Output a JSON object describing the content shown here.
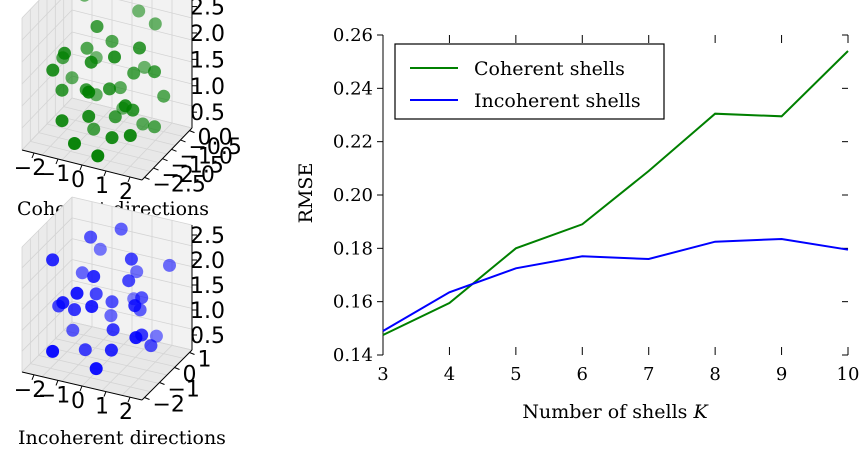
{
  "chart_data": [
    {
      "type": "scatter",
      "caption": "Coherent directions",
      "projection": "3d",
      "color": "#008000",
      "x_ticks": [
        "−2",
        "−1",
        "0",
        "1",
        "2"
      ],
      "y_ticks": [
        "−2.5",
        "−2.0",
        "−1.5",
        "−1.0",
        "−0.5",
        "0.0"
      ],
      "z_ticks": [
        "0.5",
        "1.0",
        "1.5",
        "2.0",
        "2.5"
      ],
      "points": [
        [
          -1.5,
          -0.4,
          2.7
        ],
        [
          -0.6,
          -0.2,
          2.9
        ],
        [
          0.6,
          -0.3,
          2.6
        ],
        [
          1.4,
          -0.5,
          2.5
        ],
        [
          -1.9,
          -1.1,
          1.5
        ],
        [
          -1.0,
          -1.0,
          1.8
        ],
        [
          0.0,
          -1.0,
          2.1
        ],
        [
          1.0,
          -1.2,
          1.6
        ],
        [
          1.9,
          -1.3,
          1.8
        ],
        [
          -1.6,
          -1.6,
          1.0
        ],
        [
          -0.7,
          -1.5,
          1.1
        ],
        [
          0.3,
          -1.6,
          1.3
        ],
        [
          1.3,
          -1.7,
          1.0
        ],
        [
          -1.2,
          -2.2,
          0.6
        ],
        [
          -0.2,
          -2.1,
          0.8
        ],
        [
          0.8,
          -2.2,
          0.5
        ],
        [
          1.6,
          -2.3,
          0.7
        ],
        [
          -0.5,
          -2.5,
          0.3
        ],
        [
          0.5,
          -2.6,
          0.2
        ],
        [
          -1.8,
          -0.7,
          0.9
        ],
        [
          -0.9,
          -0.6,
          0.6
        ],
        [
          0.1,
          -0.5,
          0.4
        ],
        [
          1.1,
          -0.8,
          0.3
        ],
        [
          2.0,
          -0.9,
          1.1
        ],
        [
          -1.3,
          -1.9,
          2.0
        ],
        [
          -0.3,
          -1.8,
          1.9
        ],
        [
          0.7,
          -1.9,
          2.2
        ],
        [
          1.7,
          -1.0,
          0.4
        ],
        [
          -0.6,
          -1.2,
          0.1
        ],
        [
          0.4,
          -1.4,
          0.6
        ],
        [
          -1.1,
          -0.3,
          1.3
        ],
        [
          0.9,
          -0.4,
          1.4
        ],
        [
          0.0,
          -2.4,
          1.5
        ],
        [
          1.5,
          -1.6,
          2.4
        ],
        [
          -1.7,
          -2.0,
          1.6
        ],
        [
          0.2,
          -0.8,
          1.0
        ],
        [
          1.2,
          -2.0,
          1.2
        ],
        [
          -0.4,
          -1.3,
          2.5
        ]
      ]
    },
    {
      "type": "scatter",
      "caption": "Incoherent directions",
      "projection": "3d",
      "color": "#0000ff",
      "x_ticks": [
        "−2",
        "−1",
        "0",
        "1",
        "2"
      ],
      "y_ticks": [
        "−2",
        "−1",
        "0",
        "1"
      ],
      "z_ticks": [
        "0.5",
        "1.0",
        "1.5",
        "2.0",
        "2.5"
      ],
      "points": [
        [
          -1.8,
          -1.0,
          2.4
        ],
        [
          -0.9,
          0.4,
          2.7
        ],
        [
          0.1,
          0.9,
          2.9
        ],
        [
          1.0,
          -0.2,
          2.6
        ],
        [
          1.9,
          1.2,
          2.2
        ],
        [
          -1.5,
          1.0,
          1.6
        ],
        [
          -0.6,
          -1.5,
          1.9
        ],
        [
          0.5,
          1.4,
          1.8
        ],
        [
          1.4,
          -0.8,
          1.7
        ],
        [
          -2.0,
          0.0,
          1.0
        ],
        [
          -1.1,
          -0.6,
          1.2
        ],
        [
          0.0,
          0.3,
          1.3
        ],
        [
          0.9,
          0.8,
          1.1
        ],
        [
          1.8,
          -1.6,
          1.2
        ],
        [
          -1.4,
          -1.9,
          0.5
        ],
        [
          -0.4,
          1.1,
          0.7
        ],
        [
          0.6,
          -1.1,
          0.6
        ],
        [
          1.6,
          0.2,
          0.5
        ],
        [
          -0.8,
          -0.3,
          0.2
        ],
        [
          0.3,
          -1.8,
          0.3
        ],
        [
          1.2,
          1.6,
          0.3
        ],
        [
          -1.7,
          0.6,
          0.3
        ],
        [
          -0.2,
          -0.9,
          2.2
        ],
        [
          0.8,
          0.0,
          2.0
        ],
        [
          -1.0,
          1.5,
          2.1
        ],
        [
          1.5,
          -0.4,
          0.9
        ],
        [
          -0.5,
          0.0,
          1.5
        ],
        [
          0.4,
          -0.5,
          0.9
        ],
        [
          -1.3,
          -1.2,
          1.5
        ],
        [
          1.1,
          0.5,
          1.5
        ],
        [
          0.2,
          1.8,
          1.0
        ],
        [
          -0.1,
          -1.3,
          1.6
        ]
      ]
    },
    {
      "type": "line",
      "xlabel": "Number of shells K",
      "ylabel": "RMSE",
      "x": [
        3,
        4,
        5,
        6,
        7,
        8,
        9,
        10
      ],
      "xlim": [
        3,
        10
      ],
      "ylim": [
        0.14,
        0.26
      ],
      "y_ticks": [
        0.14,
        0.16,
        0.18,
        0.2,
        0.22,
        0.24,
        0.26
      ],
      "y_tick_labels": [
        "0.14",
        "0.16",
        "0.18",
        "0.20",
        "0.22",
        "0.24",
        "0.26"
      ],
      "x_tick_labels": [
        "3",
        "4",
        "5",
        "6",
        "7",
        "8",
        "9",
        "10"
      ],
      "legend_position": "top-left",
      "grid": false,
      "series": [
        {
          "name": "Coherent shells",
          "color": "#008000",
          "values": [
            0.1475,
            0.1595,
            0.18,
            0.189,
            0.209,
            0.2305,
            0.2295,
            0.254
          ]
        },
        {
          "name": "Incoherent shells",
          "color": "#0000ff",
          "values": [
            0.149,
            0.1635,
            0.1725,
            0.177,
            0.176,
            0.1825,
            0.1835,
            0.1795
          ]
        }
      ]
    }
  ]
}
